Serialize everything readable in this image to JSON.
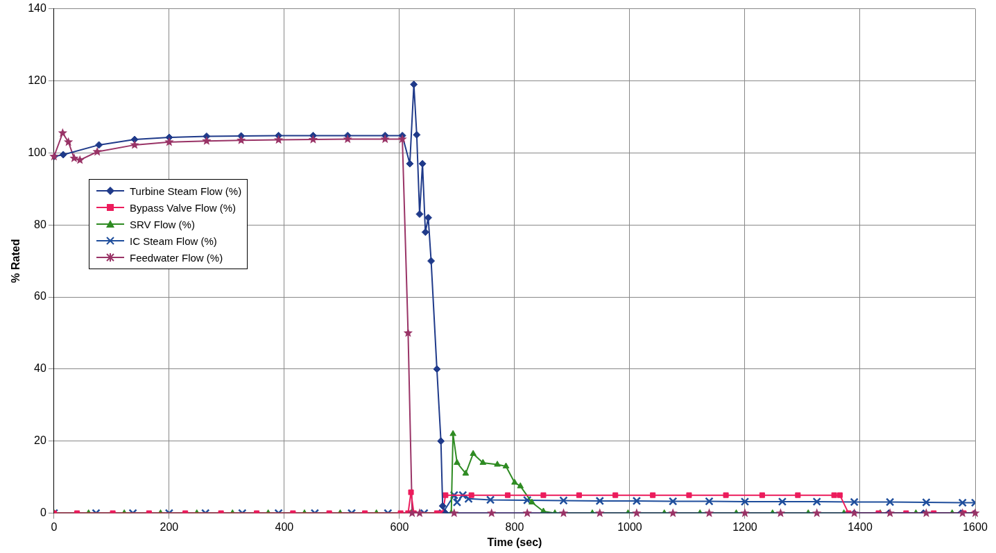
{
  "chart_data": {
    "type": "line",
    "xlabel": "Time (sec)",
    "ylabel": "% Rated",
    "xlim": [
      0,
      1600
    ],
    "xticks": [
      0,
      200,
      400,
      600,
      800,
      1000,
      1200,
      1400,
      1600
    ],
    "ylim": [
      0,
      140
    ],
    "yticks": [
      0,
      20,
      40,
      60,
      80,
      100,
      120,
      140
    ],
    "grid": true,
    "legend": "top left",
    "line_style": "solid",
    "series": [
      {
        "name": "Turbine Steam Flow (%)",
        "color": "#1f3a8a",
        "marker": "diamond",
        "x": [
          0,
          16,
          78,
          140,
          200,
          265,
          325,
          390,
          450,
          510,
          575,
          605,
          618,
          625,
          630,
          635,
          640,
          645,
          650,
          655,
          665,
          672,
          675,
          680,
          1390,
          1450,
          1510,
          1575,
          1600
        ],
        "values": [
          99,
          99.5,
          102.2,
          103.7,
          104.3,
          104.6,
          104.7,
          104.8,
          104.8,
          104.8,
          104.8,
          104.8,
          97,
          119,
          105,
          83,
          97,
          78,
          82,
          70,
          40,
          20,
          2,
          0,
          0,
          0,
          0,
          0,
          0
        ]
      },
      {
        "name": "Bypass Valve Flow (%)",
        "color": "#ec1c5c",
        "marker": "square",
        "x": [
          0,
          40,
          102,
          165,
          228,
          290,
          352,
          415,
          478,
          540,
          602,
          615,
          620,
          625,
          665,
          675,
          680,
          725,
          788,
          850,
          912,
          975,
          1040,
          1103,
          1167,
          1230,
          1292,
          1355,
          1365,
          1380,
          1432,
          1480,
          1528,
          1580,
          1600
        ],
        "values": [
          0,
          0,
          0,
          0,
          0,
          0,
          0,
          0,
          0,
          0,
          0,
          0,
          5.8,
          0,
          0,
          0,
          5,
          5,
          5,
          5,
          5,
          5,
          5,
          5,
          5,
          5,
          5,
          5,
          5,
          0,
          0,
          0,
          0,
          0,
          0
        ]
      },
      {
        "name": "SRV Flow (%)",
        "color": "#2e8b22",
        "marker": "triangle",
        "x": [
          0,
          60,
          122,
          185,
          248,
          310,
          372,
          435,
          497,
          560,
          620,
          680,
          690,
          693,
          700,
          715,
          728,
          745,
          770,
          785,
          800,
          810,
          830,
          850,
          870,
          935,
          997,
          1060,
          1122,
          1185,
          1248,
          1310,
          1372,
          1435,
          1497,
          1560,
          1600
        ],
        "values": [
          0,
          0,
          0,
          0,
          0,
          0,
          0,
          0,
          0,
          0,
          0,
          0,
          0,
          22,
          14,
          11,
          16.5,
          14,
          13.5,
          13,
          8.5,
          7.5,
          3,
          0.5,
          0,
          0,
          0,
          0,
          0,
          0,
          0,
          0,
          0,
          0,
          0,
          0,
          0
        ]
      },
      {
        "name": "IC Steam Flow (%)",
        "color": "#1f4e9c",
        "marker": "cross",
        "x": [
          0,
          73,
          137,
          200,
          263,
          327,
          390,
          453,
          517,
          580,
          643,
          675,
          695,
          700,
          710,
          720,
          758,
          822,
          885,
          948,
          1012,
          1075,
          1138,
          1200,
          1265,
          1325,
          1390,
          1452,
          1515,
          1578,
          1600
        ],
        "values": [
          0,
          0,
          0,
          0,
          0,
          0,
          0,
          0,
          0,
          0,
          0,
          0,
          5,
          3,
          5,
          4,
          3.7,
          3.6,
          3.5,
          3.4,
          3.4,
          3.3,
          3.3,
          3.2,
          3.2,
          3.2,
          3.1,
          3.1,
          3,
          2.9,
          2.9
        ]
      },
      {
        "name": "Feedwater Flow (%)",
        "color": "#993366",
        "marker": "star",
        "x": [
          0,
          15,
          25,
          35,
          45,
          75,
          140,
          200,
          265,
          325,
          390,
          450,
          510,
          575,
          605,
          615,
          622,
          635,
          695,
          760,
          822,
          885,
          948,
          1012,
          1075,
          1138,
          1200,
          1262,
          1325,
          1390,
          1452,
          1515,
          1578,
          1600
        ],
        "values": [
          99,
          105.5,
          103,
          98.5,
          98,
          100.3,
          102.2,
          103,
          103.3,
          103.5,
          103.6,
          103.7,
          103.8,
          103.8,
          103.8,
          50,
          0,
          0,
          0,
          0,
          0,
          0,
          0,
          0,
          0,
          0,
          0,
          0,
          0,
          0,
          0,
          0,
          0,
          0
        ]
      }
    ]
  }
}
